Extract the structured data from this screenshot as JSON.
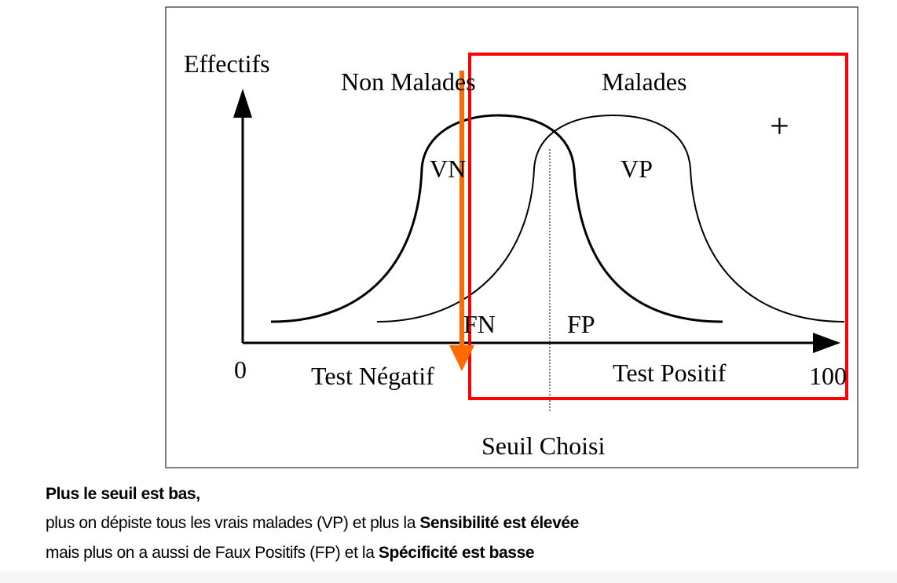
{
  "diagram": {
    "y_axis_label": "Effectifs",
    "group_left_label": "Non Malades",
    "group_right_label": "Malades",
    "plus_sign": "+",
    "vn_label": "VN",
    "vp_label": "VP",
    "fn_label": "FN",
    "fp_label": "FP",
    "x_min_label": "0",
    "x_max_label": "100",
    "negative_label": "Test Négatif",
    "positive_label": "Test Positif",
    "threshold_label": "Seuil Choisi",
    "colors": {
      "highlight_box": "#ff0000",
      "arrow": "#ff6a00",
      "curves": "#000000"
    }
  },
  "caption": {
    "line1": "Plus le seuil est bas,",
    "line2_a": "plus on dépiste tous les vrais malades (VP) et plus la ",
    "line2_b": "Sensibilité est élevée",
    "line3_a": "mais plus on a aussi de Faux Positifs (FP) et la ",
    "line3_b": "Spécificité est basse"
  }
}
